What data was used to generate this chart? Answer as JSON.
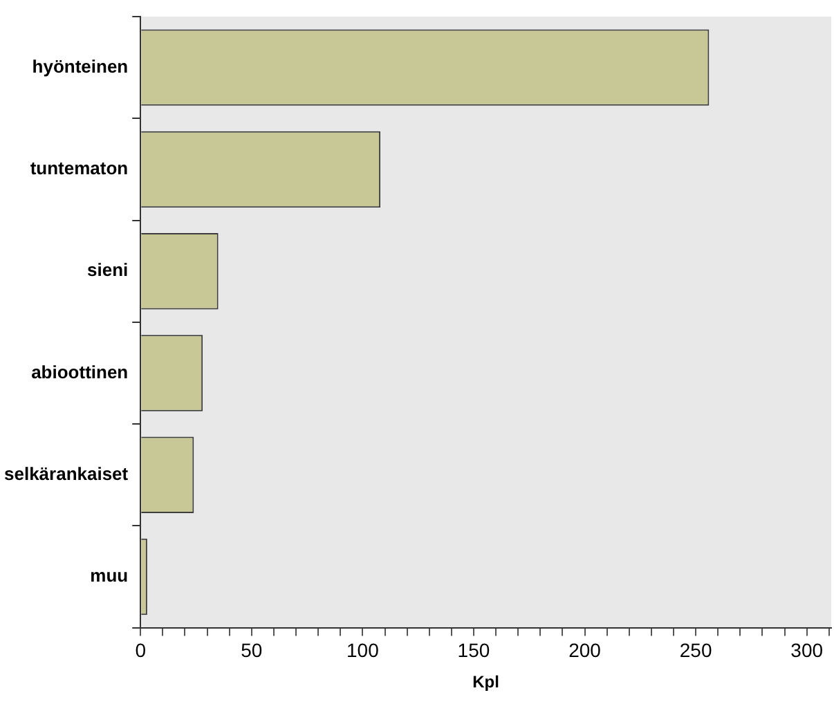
{
  "chart_data": {
    "type": "bar",
    "orientation": "horizontal",
    "xlabel": "Kpl",
    "categories": [
      "hyönteinen",
      "tuntematon",
      "sieni",
      "abioottinen",
      "selkärankaiset",
      "muu"
    ],
    "values": [
      256,
      108,
      35,
      28,
      24,
      3
    ],
    "color": "#c8c896",
    "xlim": [
      0,
      311
    ],
    "xticks": [
      0,
      {
        "value": 10,
        "label": null
      },
      {
        "value": 20,
        "label": null
      },
      {
        "value": 30,
        "label": null
      },
      {
        "value": 40,
        "label": null
      },
      50,
      {
        "value": 60,
        "label": null
      },
      {
        "value": 70,
        "label": null
      },
      {
        "value": 80,
        "label": null
      },
      {
        "value": 90,
        "label": null
      },
      100,
      {
        "value": 110,
        "label": null
      },
      {
        "value": 120,
        "label": null
      },
      {
        "value": 130,
        "label": null
      },
      {
        "value": 140,
        "label": null
      },
      150,
      {
        "value": 160,
        "label": null
      },
      {
        "value": 170,
        "label": null
      },
      {
        "value": 180,
        "label": null
      },
      {
        "value": 190,
        "label": null
      },
      200,
      {
        "value": 210,
        "label": null
      },
      {
        "value": 220,
        "label": null
      },
      {
        "value": 230,
        "label": null
      },
      {
        "value": 240,
        "label": null
      },
      250,
      {
        "value": 260,
        "label": null
      },
      {
        "value": 270,
        "label": null
      },
      {
        "value": 280,
        "label": null
      },
      {
        "value": 290,
        "label": null
      },
      300,
      {
        "value": 310,
        "label": null
      }
    ],
    "grid": false,
    "legend": false
  }
}
